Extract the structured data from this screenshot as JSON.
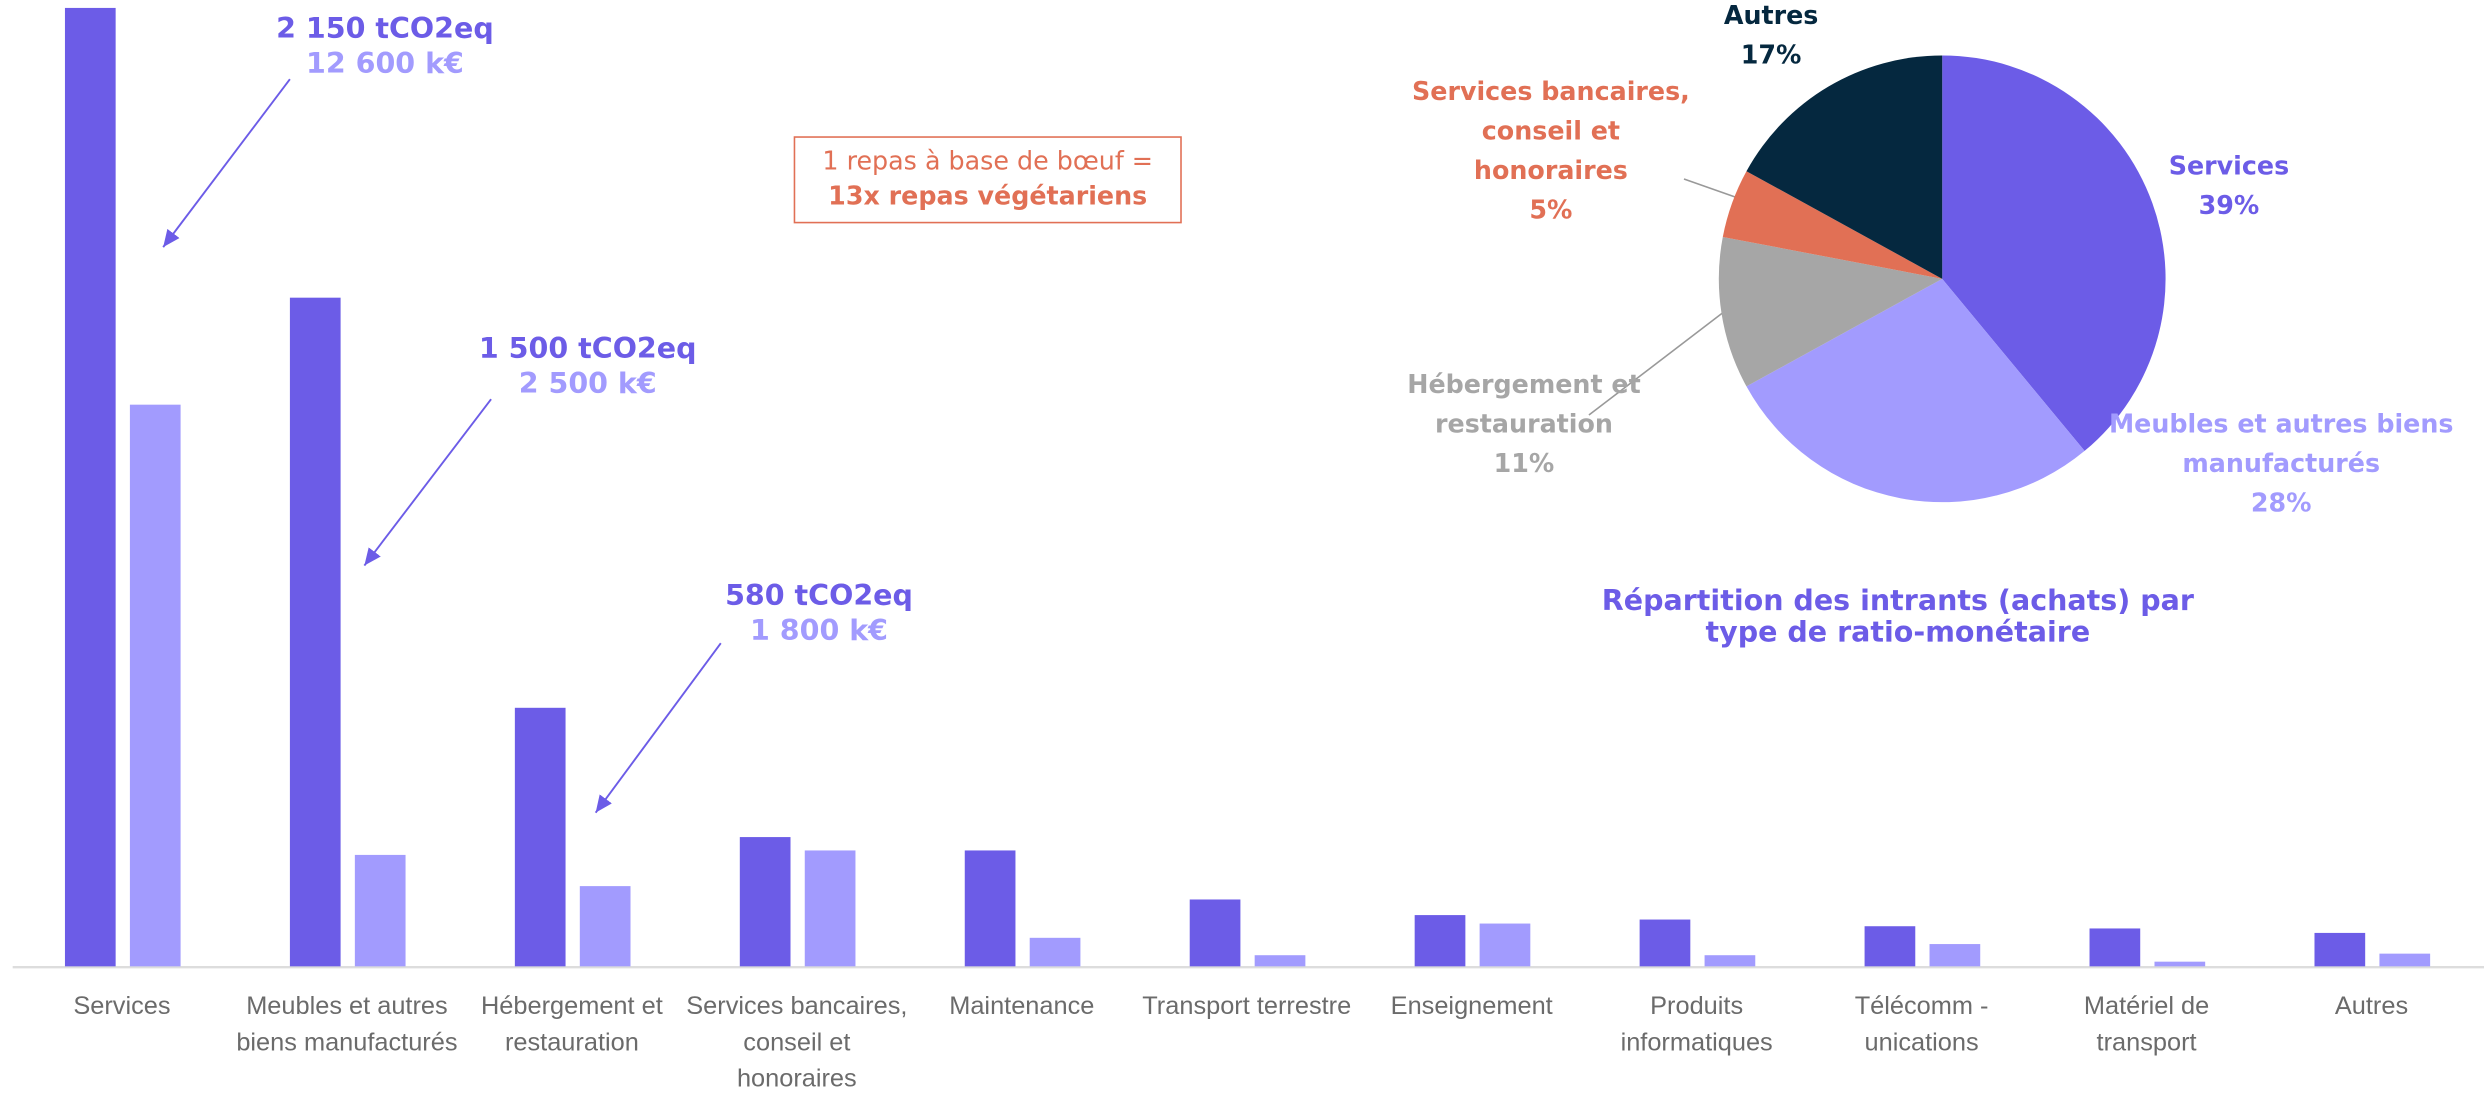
{
  "chart_data": [
    {
      "type": "bar",
      "categories": [
        "Services",
        "Meubles et autres biens manufacturés",
        "Hébergement et restauration",
        "Services bancaires, conseil et honoraires",
        "Maintenance",
        "Transport terrestre",
        "Enseignement",
        "Produits informatiques",
        "Télécomm - unications",
        "Matériel de transport",
        "Autres"
      ],
      "series": [
        {
          "color": "#6c5ce7",
          "values": [
            2150,
            1500,
            580,
            290,
            260,
            150,
            115,
            105,
            90,
            85,
            75
          ],
          "value_labels": [
            "2 150 tCO2eq",
            "1 500 tCO2eq",
            "580 tCO2eq",
            null,
            null,
            null,
            null,
            null,
            null,
            null,
            null
          ]
        },
        {
          "color": "#a29bfe",
          "axis": "y2",
          "values": [
            12600,
            2500,
            1800,
            2600,
            640,
            250,
            960,
            250,
            500,
            105,
            285
          ],
          "value_labels": [
            "12 600 k€",
            "2 500 k€",
            "1 800 k€",
            null,
            null,
            null,
            null,
            null,
            null,
            null,
            null
          ]
        }
      ],
      "ylim": [
        0,
        2150
      ],
      "y2lim": [
        0,
        21500
      ]
    },
    {
      "type": "pie",
      "title": "Répartition des intrants (achats) par type de ratio-monétaire",
      "categories": [
        "Services",
        "Meubles et autres biens manufacturés",
        "Hébergement et restauration",
        "Services bancaires, conseil et honoraires",
        "Autres"
      ],
      "values": [
        39,
        28,
        11,
        5,
        17
      ],
      "value_labels": [
        "39%",
        "28%",
        "11%",
        "5%",
        "17%"
      ],
      "colors": [
        "#6c5ce7",
        "#a29bfe",
        "#a6a6a6",
        "#e17055",
        "#05283f"
      ]
    }
  ],
  "callout": {
    "line1": "1 repas à base de bœuf =",
    "line2": "13x repas végétariens"
  }
}
